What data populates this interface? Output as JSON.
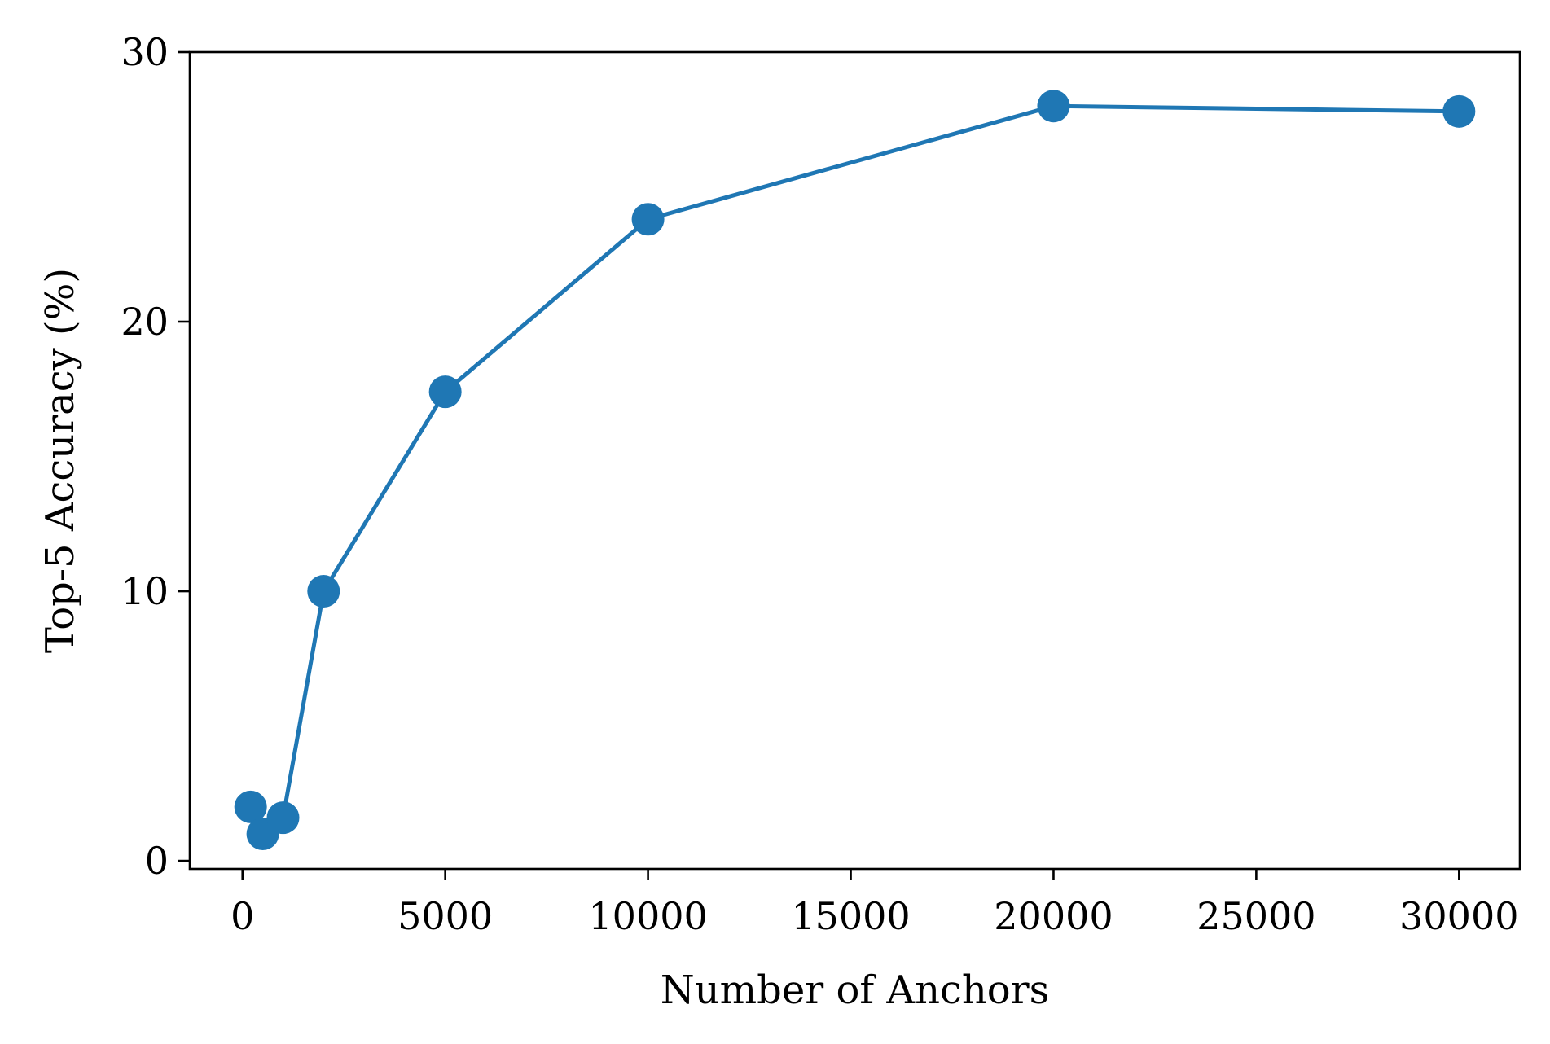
{
  "chart_data": {
    "type": "line",
    "xlabel": "Number of Anchors",
    "ylabel": "Top-5 Accuracy (%)",
    "xlim": [
      -1300,
      31500
    ],
    "ylim": [
      -0.3,
      30
    ],
    "x_ticks": [
      0,
      5000,
      10000,
      15000,
      20000,
      25000,
      30000
    ],
    "x_tick_labels": [
      "0",
      "5000",
      "10000",
      "15000",
      "20000",
      "25000",
      "30000"
    ],
    "y_ticks": [
      0,
      10,
      20,
      30
    ],
    "y_tick_labels": [
      "0",
      "10",
      "20",
      "30"
    ],
    "grid": false,
    "series": [
      {
        "color": "#1f77b4",
        "marker": "circle",
        "x": [
          200,
          500,
          1000,
          2000,
          5000,
          10000,
          20000,
          30000
        ],
        "y": [
          2.0,
          1.0,
          1.6,
          10.0,
          17.4,
          23.8,
          28.0,
          27.8
        ]
      }
    ]
  }
}
